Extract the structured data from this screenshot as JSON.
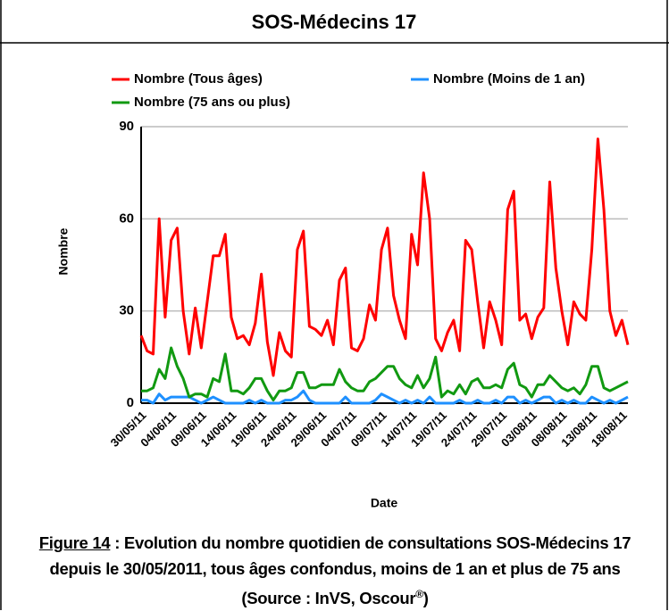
{
  "chart_data": {
    "type": "line",
    "title": "SOS-Médecins 17",
    "ylabel": "Nombre",
    "xlabel": "Date",
    "categories": [
      "30/05/11",
      null,
      null,
      null,
      null,
      "04/06/11",
      null,
      null,
      null,
      null,
      "09/06/11",
      null,
      null,
      null,
      null,
      "14/06/11",
      null,
      null,
      null,
      null,
      "19/06/11",
      null,
      null,
      null,
      null,
      "24/06/11",
      null,
      null,
      null,
      null,
      "29/06/11",
      null,
      null,
      null,
      null,
      "04/07/11",
      null,
      null,
      null,
      null,
      "09/07/11",
      null,
      null,
      null,
      null,
      "14/07/11",
      null,
      null,
      null,
      null,
      "19/07/11",
      null,
      null,
      null,
      null,
      "24/07/11",
      null,
      null,
      null,
      null,
      "29/07/11",
      null,
      null,
      null,
      null,
      "03/08/11",
      null,
      null,
      null,
      null,
      "08/08/11",
      null,
      null,
      null,
      null,
      "13/08/11",
      null,
      null,
      null,
      null,
      "18/08/11",
      null
    ],
    "series": [
      {
        "name": "Nombre (Tous âges)",
        "color": "#ff0000",
        "values": [
          22,
          17,
          16,
          60,
          28,
          53,
          57,
          30,
          16,
          31,
          18,
          33,
          48,
          48,
          55,
          28,
          21,
          22,
          19,
          26,
          42,
          20,
          9,
          23,
          17,
          15,
          50,
          56,
          25,
          24,
          22,
          27,
          19,
          40,
          44,
          18,
          17,
          21,
          32,
          27,
          50,
          57,
          35,
          27,
          21,
          55,
          45,
          75,
          60,
          21,
          17,
          23,
          27,
          17,
          53,
          50,
          33,
          18,
          33,
          27,
          19,
          63,
          69,
          27,
          29,
          21,
          28,
          31,
          72,
          44,
          30,
          19,
          33,
          29,
          27,
          50,
          86,
          63,
          30,
          22,
          27,
          19
        ]
      },
      {
        "name": "Nombre (Moins de 1 an)",
        "color": "#1e90ff",
        "values": [
          1,
          1,
          0,
          3,
          1,
          2,
          2,
          2,
          2,
          1,
          0,
          1,
          2,
          1,
          0,
          0,
          0,
          0,
          1,
          0,
          1,
          0,
          0,
          0,
          1,
          1,
          2,
          4,
          1,
          0,
          0,
          0,
          0,
          0,
          2,
          0,
          0,
          0,
          0,
          1,
          3,
          2,
          1,
          0,
          1,
          0,
          1,
          0,
          2,
          0,
          0,
          0,
          0,
          1,
          0,
          0,
          1,
          0,
          0,
          1,
          0,
          2,
          2,
          0,
          1,
          0,
          1,
          2,
          2,
          0,
          1,
          0,
          1,
          0,
          0,
          2,
          1,
          0,
          1,
          0,
          1,
          2
        ]
      },
      {
        "name": "Nombre (75 ans ou plus)",
        "color": "#119911",
        "values": [
          4,
          4,
          5,
          11,
          8,
          18,
          12,
          8,
          2,
          3,
          3,
          2,
          8,
          7,
          16,
          4,
          4,
          3,
          5,
          8,
          8,
          4,
          1,
          4,
          4,
          5,
          10,
          10,
          5,
          5,
          6,
          6,
          6,
          11,
          7,
          5,
          4,
          4,
          7,
          8,
          10,
          12,
          12,
          8,
          6,
          5,
          9,
          5,
          8,
          15,
          2,
          4,
          3,
          6,
          3,
          7,
          8,
          5,
          5,
          6,
          5,
          11,
          13,
          6,
          5,
          2,
          6,
          6,
          9,
          7,
          5,
          4,
          5,
          3,
          6,
          12,
          12,
          5,
          4,
          5,
          6,
          7
        ]
      }
    ],
    "ylim": [
      0,
      90
    ],
    "yticks": [
      0,
      30,
      60,
      90
    ],
    "grid": true
  },
  "caption": {
    "label": "Figure 14",
    "text": " : Evolution du nombre quotidien de consultations SOS-Médecins 17 depuis le 30/05/2011, tous âges confondus, moins de 1 an et plus de 75 ans (Source : InVS, Oscour",
    "sup": "®",
    "end": ")"
  }
}
